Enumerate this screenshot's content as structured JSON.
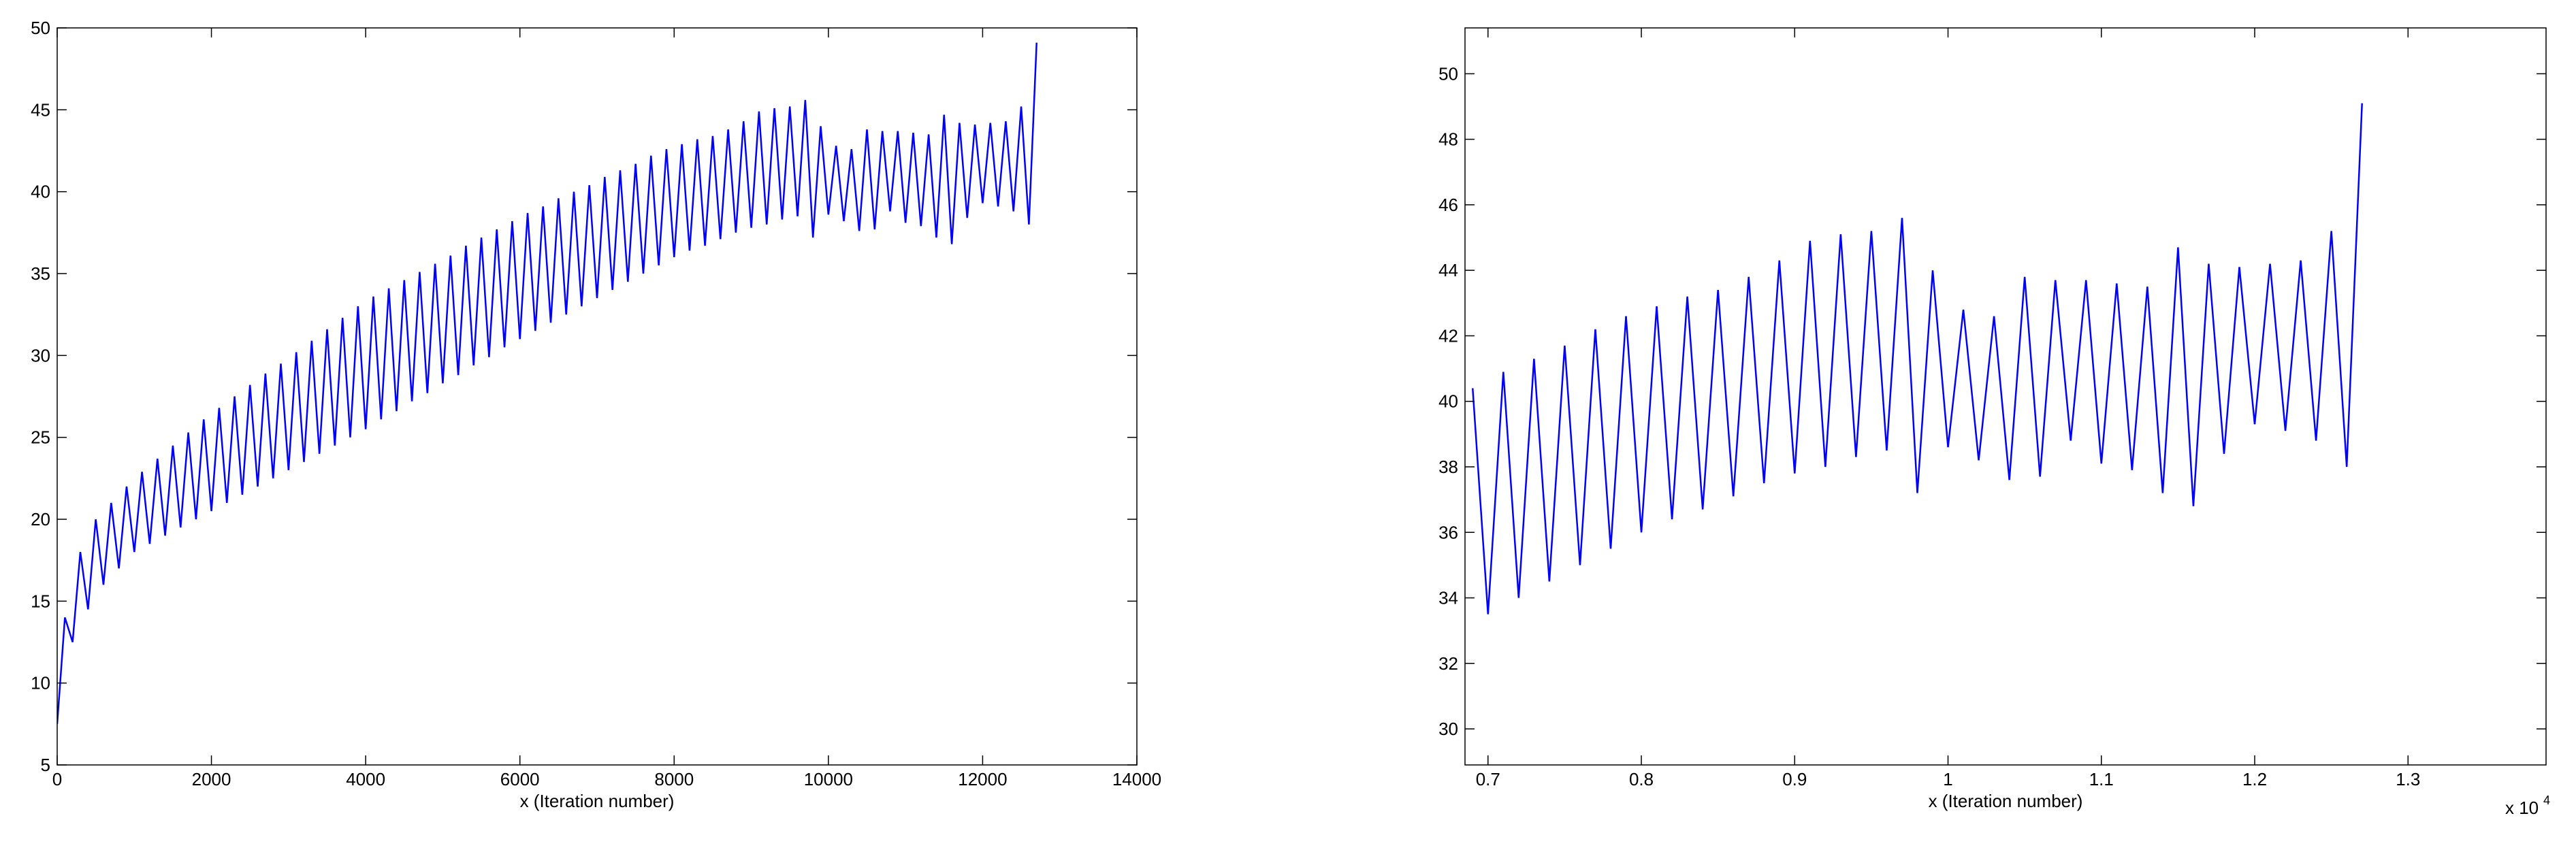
{
  "chart_data": [
    {
      "type": "line",
      "x_label": "x (Iteration number)",
      "xlim": [
        0,
        14000
      ],
      "xticks": [
        0,
        2000,
        4000,
        6000,
        8000,
        10000,
        12000,
        14000
      ],
      "ylim": [
        5,
        50
      ],
      "yticks": [
        5,
        10,
        15,
        20,
        25,
        30,
        35,
        40,
        45,
        50
      ],
      "x": [
        0,
        100,
        200,
        300,
        400,
        500,
        600,
        700,
        800,
        900,
        1000,
        1100,
        1200,
        1300,
        1400,
        1500,
        1600,
        1700,
        1800,
        1900,
        2000,
        2100,
        2200,
        2300,
        2400,
        2500,
        2600,
        2700,
        2800,
        2900,
        3000,
        3100,
        3200,
        3300,
        3400,
        3500,
        3600,
        3700,
        3800,
        3900,
        4000,
        4100,
        4200,
        4300,
        4400,
        4500,
        4600,
        4700,
        4800,
        4900,
        5000,
        5100,
        5200,
        5300,
        5400,
        5500,
        5600,
        5700,
        5800,
        5900,
        6000,
        6100,
        6200,
        6300,
        6400,
        6500,
        6600,
        6700,
        6800,
        6900,
        7000,
        7100,
        7200,
        7300,
        7400,
        7500,
        7600,
        7700,
        7800,
        7900,
        8000,
        8100,
        8200,
        8300,
        8400,
        8500,
        8600,
        8700,
        8800,
        8900,
        9000,
        9100,
        9200,
        9300,
        9400,
        9500,
        9600,
        9700,
        9800,
        9900,
        10000,
        10100,
        10200,
        10300,
        10400,
        10500,
        10600,
        10700,
        10800,
        10900,
        11000,
        11100,
        11200,
        11300,
        11400,
        11500,
        11600,
        11700,
        11800,
        11900,
        12000,
        12100,
        12200,
        12300,
        12400,
        12500,
        12600,
        12700
      ],
      "series": [
        {
          "color": "#0000ff",
          "values": [
            7.5,
            14,
            12.5,
            18,
            14.5,
            20,
            16,
            21,
            17,
            22,
            18,
            22.9,
            18.5,
            23.7,
            19,
            24.5,
            19.5,
            25.3,
            20,
            26.1,
            20.5,
            26.8,
            21,
            27.5,
            21.5,
            28.2,
            22,
            28.9,
            22.5,
            29.5,
            23,
            30.2,
            23.5,
            30.9,
            24,
            31.6,
            24.5,
            32.3,
            25,
            33,
            25.5,
            33.6,
            26.1,
            34.1,
            26.6,
            34.6,
            27.2,
            35.1,
            27.7,
            35.6,
            28.3,
            36.1,
            28.8,
            36.7,
            29.4,
            37.2,
            29.9,
            37.7,
            30.5,
            38.2,
            31,
            38.7,
            31.5,
            39.1,
            32,
            39.6,
            32.5,
            40,
            33,
            40.4,
            33.5,
            40.9,
            34,
            41.3,
            34.5,
            41.7,
            35,
            42.2,
            35.5,
            42.6,
            36,
            42.9,
            36.4,
            43.2,
            36.7,
            43.4,
            37.1,
            43.8,
            37.5,
            44.3,
            37.8,
            44.9,
            38,
            45.1,
            38.3,
            45.2,
            38.5,
            45.6,
            37.2,
            44,
            38.6,
            42.8,
            38.2,
            42.6,
            37.6,
            43.8,
            37.7,
            43.7,
            38.8,
            43.7,
            38.1,
            43.6,
            37.9,
            43.5,
            37.2,
            44.7,
            36.8,
            44.2,
            38.4,
            44.1,
            39.3,
            44.2,
            39.1,
            44.3,
            38.8,
            45.2,
            38,
            49.1
          ]
        }
      ]
    },
    {
      "type": "line",
      "x_label": "x (Iteration number)",
      "x_multiplier": "x 10",
      "x_multiplier_exponent": "4",
      "xlim": [
        6850,
        13900
      ],
      "xticks": [
        {
          "value": 7000,
          "label": "0.7"
        },
        {
          "value": 8000,
          "label": "0.8"
        },
        {
          "value": 9000,
          "label": "0.9"
        },
        {
          "value": 10000,
          "label": "1"
        },
        {
          "value": 11000,
          "label": "1.1"
        },
        {
          "value": 12000,
          "label": "1.2"
        },
        {
          "value": 13000,
          "label": "1.3"
        }
      ],
      "ylim": [
        28.9,
        51.4
      ],
      "yticks": [
        30,
        32,
        34,
        36,
        38,
        40,
        42,
        44,
        46,
        48,
        50
      ],
      "x": [
        6900,
        7000,
        7100,
        7200,
        7300,
        7400,
        7500,
        7600,
        7700,
        7800,
        7900,
        8000,
        8100,
        8200,
        8300,
        8400,
        8500,
        8600,
        8700,
        8800,
        8900,
        9000,
        9100,
        9200,
        9300,
        9400,
        9500,
        9600,
        9700,
        9800,
        9900,
        10000,
        10100,
        10200,
        10300,
        10400,
        10500,
        10600,
        10700,
        10800,
        10900,
        11000,
        11100,
        11200,
        11300,
        11400,
        11500,
        11600,
        11700,
        11800,
        11900,
        12000,
        12100,
        12200,
        12300,
        12400,
        12500,
        12600,
        12700
      ],
      "series": [
        {
          "color": "#0000ff",
          "values": [
            40.4,
            33.5,
            40.9,
            34,
            41.3,
            34.5,
            41.7,
            35,
            42.2,
            35.5,
            42.6,
            36,
            42.9,
            36.4,
            43.2,
            36.7,
            43.4,
            37.1,
            43.8,
            37.5,
            44.3,
            37.8,
            44.9,
            38,
            45.1,
            38.3,
            45.2,
            38.5,
            45.6,
            37.2,
            44,
            38.6,
            42.8,
            38.2,
            42.6,
            37.6,
            43.8,
            37.7,
            43.7,
            38.8,
            43.7,
            38.1,
            43.6,
            37.9,
            43.5,
            37.2,
            44.7,
            36.8,
            44.2,
            38.4,
            44.1,
            39.3,
            44.2,
            39.1,
            44.3,
            38.8,
            45.2,
            38,
            49.1
          ]
        }
      ]
    }
  ]
}
